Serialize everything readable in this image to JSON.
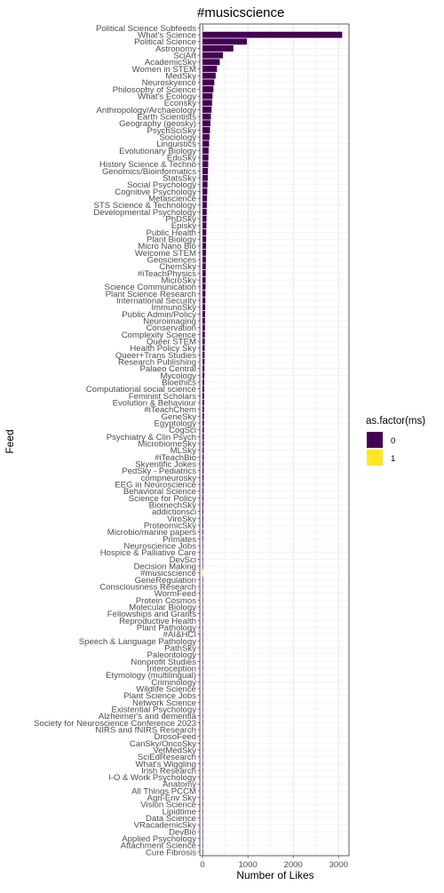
{
  "chart_data": {
    "type": "bar",
    "orientation": "horizontal",
    "title": "#musicscience",
    "xlabel": "Number of Likes",
    "ylabel": "Feed",
    "xlim": [
      -60,
      3230
    ],
    "xticks": [
      0,
      1000,
      2000,
      3000
    ],
    "grid": true,
    "legend": {
      "title": "as.factor(ms)",
      "position": "right",
      "entries": [
        {
          "label": "0",
          "color": "#440154"
        },
        {
          "label": "1",
          "color": "#FDE725"
        }
      ]
    },
    "categories": [
      "Political Science Subfeeds",
      "What's Science",
      "Political Science",
      "Astronomy",
      "SciArt",
      "AcademicSky",
      "Women in STEM",
      "MedSky",
      "Neuroskyence",
      "Philosophy of Science",
      "What's Ecology",
      "Econsky",
      "Anthropology/Archaeology",
      "Earth Scientists",
      "Geography (geosky)",
      "PsychSciSky",
      "Sociology",
      "Linguistics",
      "Evolutionary Biology",
      "EduSky",
      "History Science & Techno",
      "Genomics/Bioinformatics",
      "StatsSky",
      "Social Psychology",
      "Cognitive Psychology",
      "Metascience",
      "STS Science & Technology",
      "Developmental Psychology",
      "PhDSky",
      "Episky",
      "Public Health",
      "Plant Biology",
      "Micro Nano Bio",
      "Welcome STEM",
      "Geosciences",
      "ChemSky",
      "#iTeachPhysics",
      "MicroSky",
      "Science Communication",
      "Plant Science Research",
      "International Security",
      "ImmunoSky",
      "Public Admin/Policy",
      "Neuroimaging",
      "Conservation",
      "Complexity Science",
      "Queer STEM",
      "Health Policy Sky",
      "Queer+Trans Studies",
      "Research Publishing",
      "Palaeo Central",
      "Mycology",
      "Bioethics",
      "Computational social science",
      "Feminist Scholars",
      "Evolution & Behaviour",
      "#iTeachChem",
      "GeneSky",
      "Egyptology",
      "CogSci",
      "Psychiatry & Clin Psych",
      "MicrobiomeSky",
      "MLSky",
      "#iTeachBio",
      "Skyentific Jokes",
      "PedSky - Pediatrics",
      "compneurosky",
      "EEG in Neuroscience",
      "Behavioral Science",
      "Science for Policy",
      "BiomechSky",
      "addictionsci",
      "ViroSky",
      "ProteomicSky",
      "Microbio/marine papers",
      "Primates",
      "Neuroscience Jobs",
      "Hospice & Palliative Care",
      "DevSci",
      "Decision Making",
      "#musicscience",
      "GeneRegulation",
      "Consciousness Research",
      "WormFeed",
      "Protein Cosmos",
      "Molecular Biology",
      "Fellowships and Grants",
      "Reproductive Health",
      "Plant Pathology",
      "#AI&HCI",
      "Speech & Language Pathology",
      "PathSky",
      "Paleontology",
      "Nonprofit Studies",
      "Interoception",
      "Etymology (multilingual)",
      "Criminology",
      "Wildlife Science",
      "Plant Science Jobs",
      "Network Science",
      "Existential Psychology",
      "Alzheimer's and dementia",
      "Society for Neuroscience Conference 2023",
      "NIRS and fNIRS Research",
      "DrosoFeed",
      "CanSky/OncoSky",
      "VetMedSky",
      "SciEdResearch",
      "What's Wiggling",
      "Irish Research",
      "I-O & Work Psychology",
      "Anatomy",
      "All Things PCCM",
      "Agri-Env Sky",
      "Vision Science",
      "Lipidtime",
      "Data Science",
      "VRacademicSky",
      "DevBio",
      "Applied Psychology",
      "Attachment Science",
      "Cure Fibrosis"
    ],
    "values": [
      0,
      3080,
      980,
      680,
      450,
      380,
      320,
      290,
      260,
      240,
      220,
      210,
      200,
      185,
      175,
      165,
      155,
      145,
      135,
      130,
      125,
      120,
      115,
      110,
      105,
      100,
      95,
      92,
      88,
      85,
      82,
      80,
      78,
      76,
      74,
      72,
      70,
      68,
      66,
      64,
      62,
      60,
      58,
      56,
      54,
      52,
      50,
      48,
      46,
      44,
      42,
      40,
      38,
      37,
      36,
      35,
      34,
      33,
      32,
      31,
      30,
      29,
      28,
      27,
      26,
      25,
      24,
      23,
      22,
      21,
      20,
      19,
      18,
      17,
      16,
      15,
      14,
      13,
      12,
      11,
      10,
      10,
      9,
      9,
      8,
      8,
      8,
      7,
      7,
      7,
      6,
      6,
      6,
      5,
      5,
      5,
      5,
      4,
      4,
      4,
      4,
      3,
      3,
      3,
      3,
      3,
      2,
      2,
      2,
      2,
      2,
      2,
      2,
      1,
      1,
      1,
      1,
      1,
      1,
      1,
      1,
      0
    ],
    "group": {
      "highlight_category": "#musicscience",
      "highlight_level": "1",
      "default_level": "0"
    }
  }
}
